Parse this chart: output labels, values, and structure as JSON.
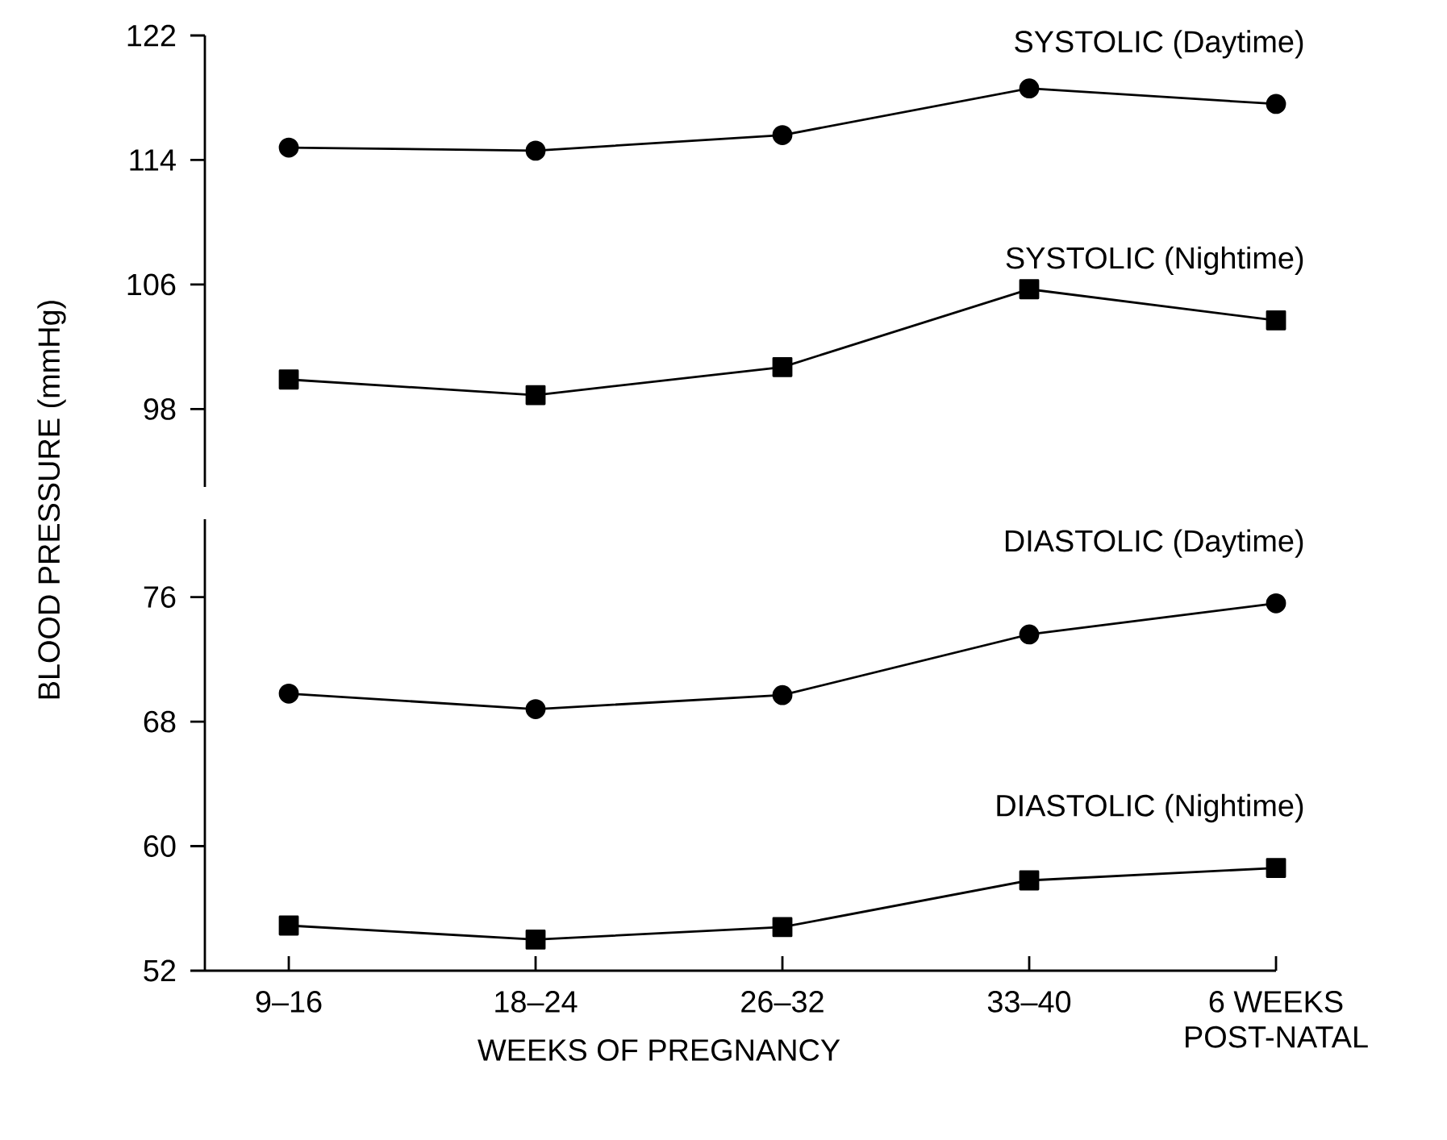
{
  "chart_data": [
    {
      "type": "line",
      "categories": [
        null,
        null,
        null,
        null,
        null
      ],
      "ylim": [
        93,
        122
      ],
      "yticks": [
        98,
        106,
        114,
        122
      ],
      "tick_labels": "y",
      "grid": false,
      "legend": false,
      "line_style": "solid",
      "series": [
        {
          "name": "SYSTOLIC (Daytime)",
          "color": "#000000",
          "marker": "circle",
          "values": [
            114.8,
            114.6,
            115.6,
            118.6,
            117.6
          ]
        },
        {
          "name": "SYSTOLIC (Nightime)",
          "color": "#000000",
          "marker": "square",
          "values": [
            99.9,
            98.9,
            100.7,
            105.7,
            103.7
          ]
        }
      ]
    },
    {
      "type": "line",
      "categories": [
        "9–16",
        "18–24",
        "26–32",
        "33–40",
        "6 WEEKS POST-NATAL"
      ],
      "xlabel": "WEEKS OF PREGNANCY",
      "ylabel": "BLOOD PRESSURE (mmHg)",
      "ylim": [
        52,
        81
      ],
      "yticks": [
        52,
        60,
        68,
        76
      ],
      "grid": false,
      "legend": false,
      "line_style": "solid",
      "series": [
        {
          "name": "DIASTOLIC (Daytime)",
          "color": "#000000",
          "marker": "circle",
          "values": [
            69.8,
            68.8,
            69.7,
            73.6,
            75.6
          ]
        },
        {
          "name": "DIASTOLIC (Nightime)",
          "color": "#000000",
          "marker": "square",
          "values": [
            54.9,
            54.0,
            54.8,
            57.8,
            58.6
          ]
        }
      ]
    }
  ]
}
